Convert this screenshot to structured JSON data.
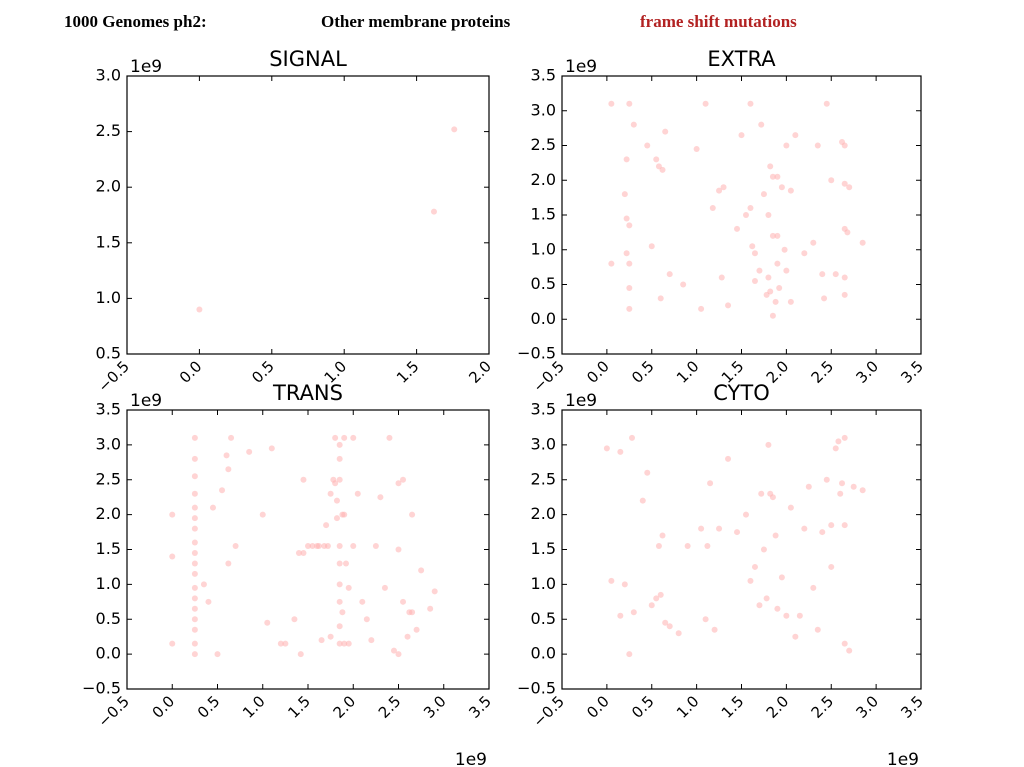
{
  "header": {
    "left": "1000 Genomes ph2:",
    "middle": "Other membrane proteins",
    "right": "frame shift mutations",
    "right_color": "#b22222"
  },
  "point_color": "#ffb0b0",
  "chart_data": [
    {
      "type": "scatter",
      "title": "SIGNAL",
      "xlabel": "",
      "ylabel": "",
      "x_offset_label": "",
      "y_offset_label": "1e9",
      "xlim": [
        -0.5,
        2.0
      ],
      "ylim": [
        0.5,
        3.0
      ],
      "xticks": [
        "−0.5",
        "0.0",
        "0.5",
        "1.0",
        "1.5",
        "2.0"
      ],
      "yticks": [
        "0.5",
        "1.0",
        "1.5",
        "2.0",
        "2.5",
        "3.0"
      ],
      "x": [
        0.0,
        1.62,
        1.76
      ],
      "y": [
        0.9,
        1.78,
        2.52
      ]
    },
    {
      "type": "scatter",
      "title": "EXTRA",
      "xlabel": "",
      "ylabel": "",
      "x_offset_label": "",
      "y_offset_label": "1e9",
      "xlim": [
        -0.5,
        3.5
      ],
      "ylim": [
        -0.5,
        3.5
      ],
      "xticks": [
        "−0.5",
        "0.0",
        "0.5",
        "1.0",
        "1.5",
        "2.0",
        "2.5",
        "3.0",
        "3.5"
      ],
      "yticks": [
        "−0.5",
        "0.0",
        "0.5",
        "1.0",
        "1.5",
        "2.0",
        "2.5",
        "3.0",
        "3.5"
      ],
      "x": [
        0.05,
        0.05,
        0.2,
        0.22,
        0.22,
        0.22,
        0.25,
        0.25,
        0.25,
        0.25,
        0.25,
        0.3,
        0.45,
        0.5,
        0.55,
        0.58,
        0.6,
        0.62,
        0.65,
        0.7,
        0.85,
        1.0,
        1.05,
        1.1,
        1.18,
        1.25,
        1.28,
        1.3,
        1.35,
        1.45,
        1.5,
        1.55,
        1.6,
        1.6,
        1.62,
        1.65,
        1.65,
        1.7,
        1.72,
        1.75,
        1.78,
        1.8,
        1.8,
        1.82,
        1.82,
        1.85,
        1.85,
        1.85,
        1.88,
        1.9,
        1.9,
        1.9,
        1.92,
        1.95,
        1.98,
        2.0,
        2.0,
        2.05,
        2.05,
        2.1,
        2.2,
        2.3,
        2.35,
        2.4,
        2.42,
        2.45,
        2.5,
        2.55,
        2.62,
        2.65,
        2.65,
        2.65,
        2.65,
        2.65,
        2.68,
        2.7,
        2.85
      ],
      "y": [
        3.1,
        0.8,
        1.8,
        2.3,
        1.45,
        0.95,
        0.45,
        0.15,
        3.1,
        0.8,
        1.35,
        2.8,
        2.5,
        1.05,
        2.3,
        2.2,
        0.3,
        2.15,
        2.7,
        0.65,
        0.5,
        2.45,
        0.15,
        3.1,
        1.6,
        1.85,
        0.6,
        1.9,
        0.2,
        1.3,
        2.65,
        1.5,
        3.1,
        1.6,
        1.05,
        0.95,
        0.55,
        0.7,
        2.8,
        1.8,
        0.35,
        1.5,
        0.6,
        2.2,
        0.4,
        2.05,
        1.2,
        0.05,
        0.25,
        2.05,
        0.8,
        1.2,
        0.45,
        1.9,
        1.0,
        2.5,
        0.7,
        1.85,
        0.25,
        2.65,
        0.95,
        1.1,
        2.5,
        0.65,
        0.3,
        3.1,
        2.0,
        0.65,
        2.55,
        1.95,
        1.3,
        0.6,
        0.35,
        2.5,
        1.25,
        1.9,
        1.1
      ]
    },
    {
      "type": "scatter",
      "title": "TRANS",
      "xlabel": "",
      "ylabel": "",
      "x_offset_label": "",
      "y_offset_label": "1e9",
      "xlim": [
        -0.5,
        3.5
      ],
      "ylim": [
        -0.5,
        3.5
      ],
      "xticks": [
        "−0.5",
        "0.0",
        "0.5",
        "1.0",
        "1.5",
        "2.0",
        "2.5",
        "3.0",
        "3.5"
      ],
      "yticks": [
        "−0.5",
        "0.0",
        "0.5",
        "1.0",
        "1.5",
        "2.0",
        "2.5",
        "3.0",
        "3.5"
      ],
      "x": [
        0.0,
        0.0,
        0.0,
        0.25,
        0.25,
        0.25,
        0.25,
        0.25,
        0.25,
        0.25,
        0.25,
        0.25,
        0.25,
        0.25,
        0.25,
        0.25,
        0.25,
        0.25,
        0.25,
        0.25,
        0.25,
        0.35,
        0.4,
        0.45,
        0.5,
        0.55,
        0.6,
        0.62,
        0.62,
        0.65,
        0.7,
        0.85,
        1.0,
        1.05,
        1.1,
        1.2,
        1.25,
        1.35,
        1.4,
        1.42,
        1.45,
        1.45,
        1.5,
        1.55,
        1.6,
        1.62,
        1.65,
        1.68,
        1.7,
        1.72,
        1.75,
        1.75,
        1.78,
        1.8,
        1.8,
        1.82,
        1.82,
        1.85,
        1.85,
        1.85,
        1.85,
        1.85,
        1.85,
        1.85,
        1.85,
        1.85,
        1.88,
        1.88,
        1.9,
        1.9,
        1.9,
        1.92,
        1.95,
        1.95,
        2.0,
        2.0,
        2.05,
        2.1,
        2.15,
        2.2,
        2.25,
        2.3,
        2.35,
        2.4,
        2.45,
        2.5,
        2.5,
        2.5,
        2.55,
        2.55,
        2.6,
        2.62,
        2.65,
        2.65,
        2.7,
        2.75,
        2.85,
        2.9
      ],
      "y": [
        2.0,
        1.4,
        0.15,
        3.1,
        2.8,
        2.55,
        2.3,
        2.1,
        1.95,
        1.8,
        1.6,
        1.45,
        1.3,
        1.15,
        0.95,
        0.8,
        0.65,
        0.5,
        0.35,
        0.15,
        0.0,
        1.0,
        0.75,
        2.1,
        0.0,
        2.35,
        2.85,
        2.65,
        1.3,
        3.1,
        1.55,
        2.9,
        2.0,
        0.45,
        2.95,
        0.15,
        0.15,
        0.5,
        1.45,
        0.0,
        2.5,
        1.45,
        1.55,
        1.55,
        1.55,
        1.55,
        0.2,
        1.55,
        1.85,
        1.55,
        2.3,
        0.25,
        2.5,
        3.1,
        2.45,
        2.2,
        1.95,
        3.0,
        2.8,
        2.5,
        1.55,
        1.3,
        1.0,
        0.75,
        0.4,
        0.15,
        2.0,
        0.6,
        3.1,
        2.0,
        0.15,
        1.3,
        0.95,
        0.15,
        3.1,
        1.55,
        2.3,
        0.75,
        0.5,
        0.2,
        1.55,
        2.25,
        0.95,
        3.1,
        0.05,
        2.45,
        1.5,
        0.0,
        2.5,
        0.75,
        0.25,
        0.6,
        2.0,
        0.6,
        0.35,
        1.2,
        0.65,
        0.9
      ]
    },
    {
      "type": "scatter",
      "title": "CYTO",
      "xlabel": "",
      "ylabel": "",
      "x_offset_label": "",
      "y_offset_label": "1e9",
      "xlim": [
        -0.5,
        3.5
      ],
      "ylim": [
        -0.5,
        3.5
      ],
      "xticks": [
        "−0.5",
        "0.0",
        "0.5",
        "1.0",
        "1.5",
        "2.0",
        "2.5",
        "3.0",
        "3.5"
      ],
      "yticks": [
        "−0.5",
        "0.0",
        "0.5",
        "1.0",
        "1.5",
        "2.0",
        "2.5",
        "3.0",
        "3.5"
      ],
      "x": [
        0.0,
        0.05,
        0.15,
        0.15,
        0.2,
        0.25,
        0.28,
        0.3,
        0.4,
        0.45,
        0.5,
        0.55,
        0.58,
        0.6,
        0.62,
        0.65,
        0.7,
        0.8,
        0.9,
        1.05,
        1.1,
        1.12,
        1.15,
        1.2,
        1.25,
        1.35,
        1.45,
        1.55,
        1.6,
        1.65,
        1.7,
        1.72,
        1.75,
        1.78,
        1.8,
        1.82,
        1.85,
        1.88,
        1.9,
        1.95,
        2.0,
        2.05,
        2.1,
        2.15,
        2.2,
        2.25,
        2.3,
        2.35,
        2.4,
        2.45,
        2.5,
        2.5,
        2.55,
        2.58,
        2.6,
        2.62,
        2.65,
        2.65,
        2.65,
        2.7,
        2.75,
        2.85
      ],
      "y": [
        2.95,
        1.05,
        2.9,
        0.55,
        1.0,
        0.0,
        3.1,
        0.6,
        2.2,
        2.6,
        0.7,
        0.8,
        1.55,
        0.85,
        1.7,
        0.45,
        0.4,
        0.3,
        1.55,
        1.8,
        0.5,
        1.55,
        2.45,
        0.35,
        1.8,
        2.8,
        1.75,
        2.0,
        1.05,
        1.25,
        0.7,
        2.3,
        1.5,
        0.8,
        3.0,
        2.3,
        2.25,
        1.7,
        0.65,
        1.1,
        0.55,
        2.1,
        0.25,
        0.55,
        1.8,
        2.4,
        0.95,
        0.35,
        1.75,
        2.5,
        1.85,
        1.25,
        2.95,
        3.05,
        2.3,
        2.45,
        3.1,
        0.15,
        1.85,
        0.05,
        2.4,
        2.35
      ]
    }
  ]
}
